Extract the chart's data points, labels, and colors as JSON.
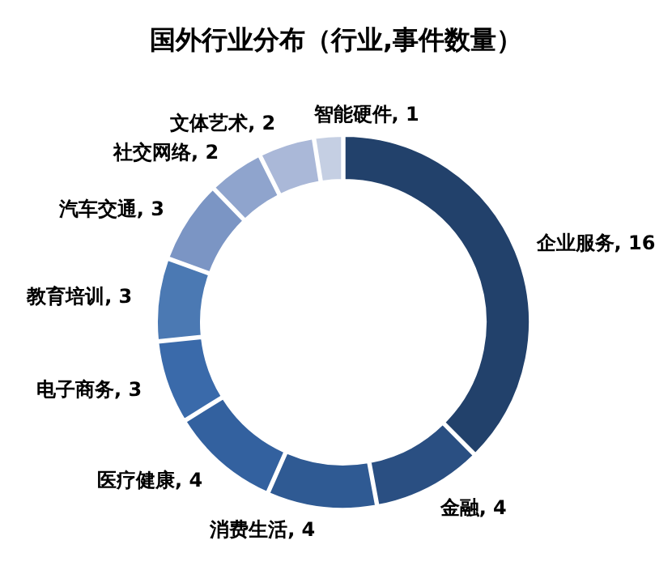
{
  "chart_data": {
    "type": "donut",
    "title": "国外行业分布（行业,事件数量）",
    "categories": [
      "企业服务",
      "金融",
      "消费生活",
      "医疗健康",
      "电子商务",
      "教育培训",
      "汽车交通",
      "社交网络",
      "文体艺术",
      "智能硬件"
    ],
    "values": [
      16,
      4,
      4,
      4,
      3,
      3,
      3,
      2,
      2,
      1
    ],
    "colors": [
      "#22416b",
      "#2a4f82",
      "#2f5a93",
      "#33619f",
      "#3a6aaa",
      "#4b79b3",
      "#7b95c4",
      "#8fa4cd",
      "#aab8d8",
      "#c5cfe3"
    ],
    "value_labels": [
      ", 16",
      ", 4",
      ", 4",
      ", 4",
      ", 3",
      ", 3",
      ", 3",
      ", 2",
      ", 2",
      ", 1"
    ],
    "legend": false
  }
}
